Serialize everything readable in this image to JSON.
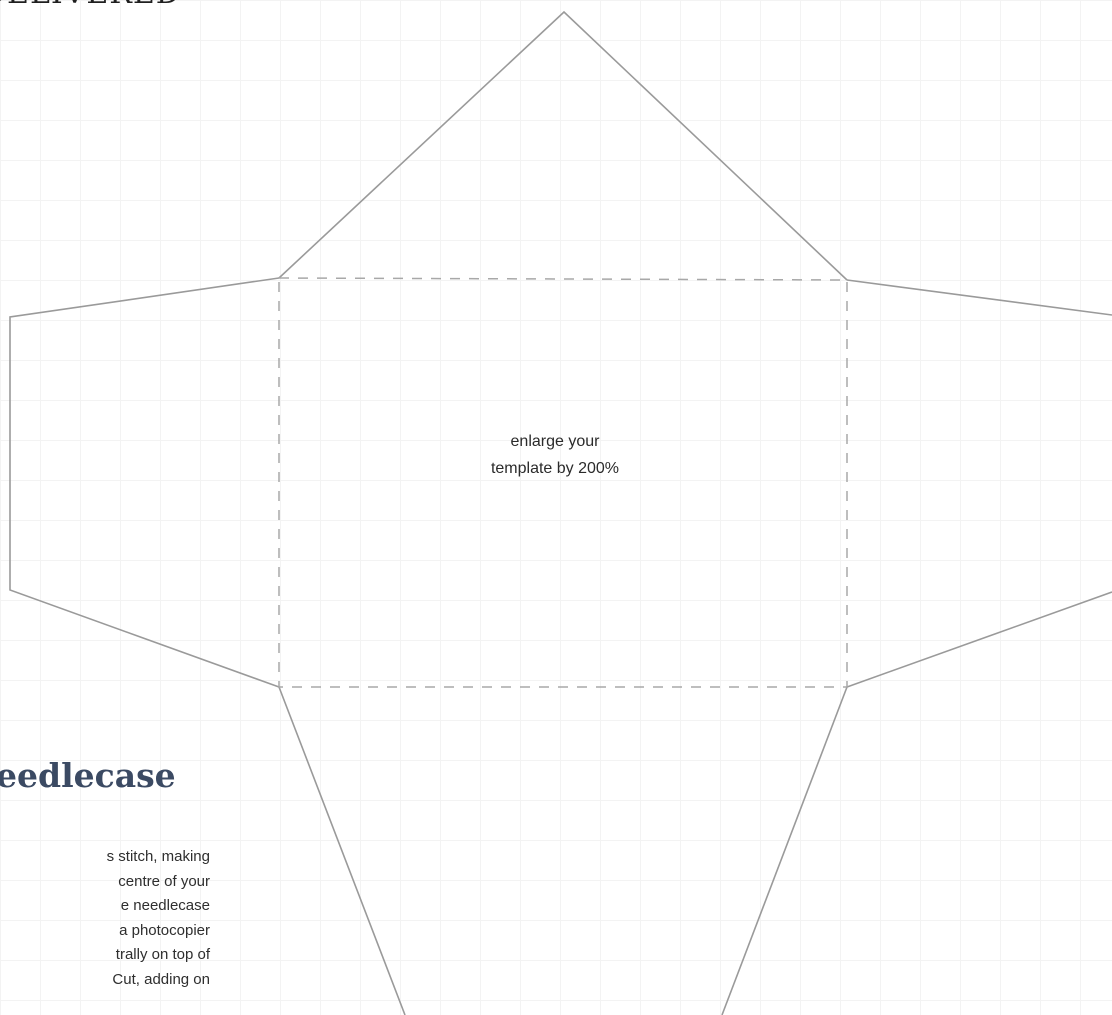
{
  "header": {
    "title": "DELIVERED"
  },
  "template": {
    "note_line_1": "enlarge your",
    "note_line_2": "template by 200%"
  },
  "article": {
    "title": "eedlecase",
    "body_lines": [
      "s stitch, making",
      "centre of your",
      "e needlecase",
      "a photocopier",
      "trally on top of",
      "Cut, adding on"
    ]
  },
  "colors": {
    "cut_line": "#9a9a9a",
    "fold_line": "#a8a8a8",
    "title": "#3b4a63"
  }
}
